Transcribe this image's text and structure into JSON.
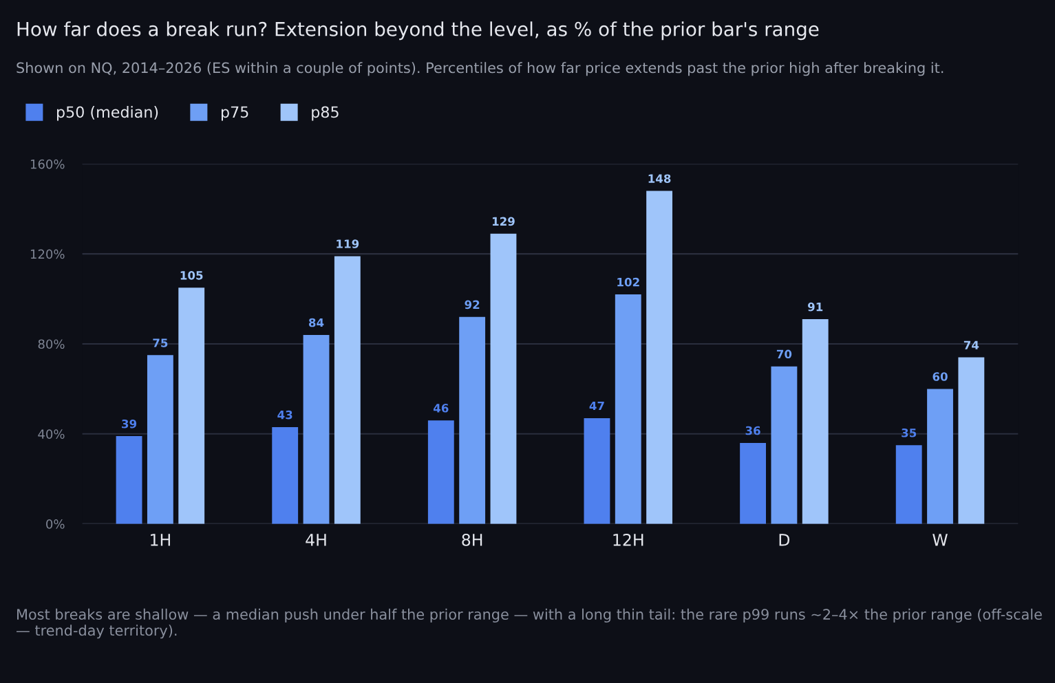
{
  "chart_data": {
    "type": "bar",
    "title": "How far does a break run? Extension beyond the level, as % of the prior bar's range",
    "subtitle": "Shown on NQ, 2014–2026 (ES within a couple of points). Percentiles of how far price extends past the prior high after breaking it.",
    "categories": [
      "1H",
      "4H",
      "8H",
      "12H",
      "D",
      "W"
    ],
    "series": [
      {
        "name": "p50 (median)",
        "color": "#4f80ee",
        "values": [
          39,
          43,
          46,
          47,
          36,
          35
        ]
      },
      {
        "name": "p75",
        "color": "#6e9ff5",
        "values": [
          75,
          84,
          92,
          102,
          70,
          60
        ]
      },
      {
        "name": "p85",
        "color": "#9fc5fa",
        "values": [
          105,
          119,
          129,
          148,
          91,
          74
        ]
      }
    ],
    "ylim": [
      0,
      160
    ],
    "yticks": [
      {
        "value": 0,
        "label": "0%"
      },
      {
        "value": 40,
        "label": "40%"
      },
      {
        "value": 80,
        "label": "80%"
      },
      {
        "value": 120,
        "label": "120%"
      },
      {
        "value": 160,
        "label": "160%"
      }
    ],
    "grid": "y",
    "legend": "top left",
    "data_labels": true,
    "annotations": [
      "Most breaks are shallow — a median push under half the prior range — with a long thin tail: the rare p99 runs ~2–4× the prior range (off-scale — trend-day territory)."
    ]
  }
}
